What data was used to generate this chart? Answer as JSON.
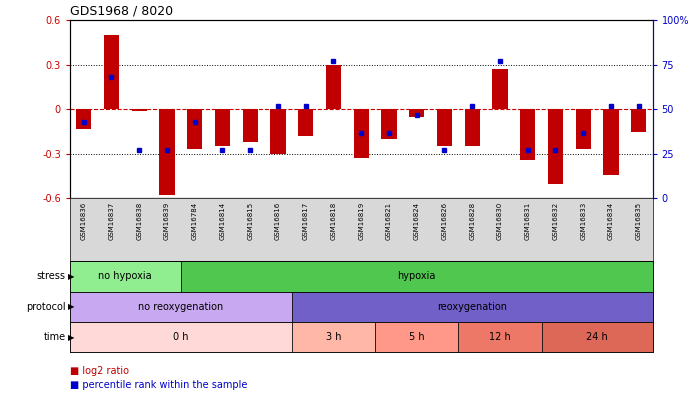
{
  "title": "GDS1968 / 8020",
  "samples": [
    "GSM16836",
    "GSM16837",
    "GSM16838",
    "GSM16839",
    "GSM16784",
    "GSM16814",
    "GSM16815",
    "GSM16816",
    "GSM16817",
    "GSM16818",
    "GSM16819",
    "GSM16821",
    "GSM16824",
    "GSM16826",
    "GSM16828",
    "GSM16830",
    "GSM16831",
    "GSM16832",
    "GSM16833",
    "GSM16834",
    "GSM16835"
  ],
  "log2_ratio": [
    -0.13,
    0.5,
    -0.01,
    -0.58,
    -0.27,
    -0.25,
    -0.22,
    -0.3,
    -0.18,
    0.3,
    -0.33,
    -0.2,
    -0.05,
    -0.25,
    -0.25,
    0.27,
    -0.34,
    -0.5,
    -0.27,
    -0.44,
    -0.15
  ],
  "percentile": [
    43,
    68,
    27,
    27,
    43,
    27,
    27,
    52,
    52,
    77,
    37,
    37,
    47,
    27,
    52,
    77,
    27,
    27,
    37,
    52,
    52
  ],
  "ylim": [
    -0.6,
    0.6
  ],
  "yticks_left": [
    -0.6,
    -0.3,
    0.0,
    0.3,
    0.6
  ],
  "ytick_labels_left": [
    "-0.6",
    "-0.3",
    "0",
    "0.3",
    "0.6"
  ],
  "yticks_right_pct": [
    0,
    25,
    50,
    75,
    100
  ],
  "ytick_labels_right": [
    "0",
    "25",
    "50",
    "75",
    "100%"
  ],
  "bar_color": "#C00000",
  "dot_color": "#0000CC",
  "zero_line_color": "#CC0000",
  "stress_groups": [
    {
      "label": "no hypoxia",
      "start": 0,
      "end": 4,
      "color": "#90EE90"
    },
    {
      "label": "hypoxia",
      "start": 4,
      "end": 21,
      "color": "#50C850"
    }
  ],
  "protocol_groups": [
    {
      "label": "no reoxygenation",
      "start": 0,
      "end": 8,
      "color": "#C8A8F0"
    },
    {
      "label": "reoxygenation",
      "start": 8,
      "end": 21,
      "color": "#7060C8"
    }
  ],
  "time_groups": [
    {
      "label": "0 h",
      "start": 0,
      "end": 8,
      "color": "#FFD8D8"
    },
    {
      "label": "3 h",
      "start": 8,
      "end": 11,
      "color": "#FFB8A8"
    },
    {
      "label": "5 h",
      "start": 11,
      "end": 14,
      "color": "#FF9888"
    },
    {
      "label": "12 h",
      "start": 14,
      "end": 17,
      "color": "#EE7868"
    },
    {
      "label": "24 h",
      "start": 17,
      "end": 21,
      "color": "#DD6858"
    }
  ],
  "ann_labels": [
    "stress",
    "protocol",
    "time"
  ],
  "bar_width": 0.55,
  "xtick_bg_color": "#D8D8D8",
  "legend_bar_label": "log2 ratio",
  "legend_dot_label": "percentile rank within the sample"
}
